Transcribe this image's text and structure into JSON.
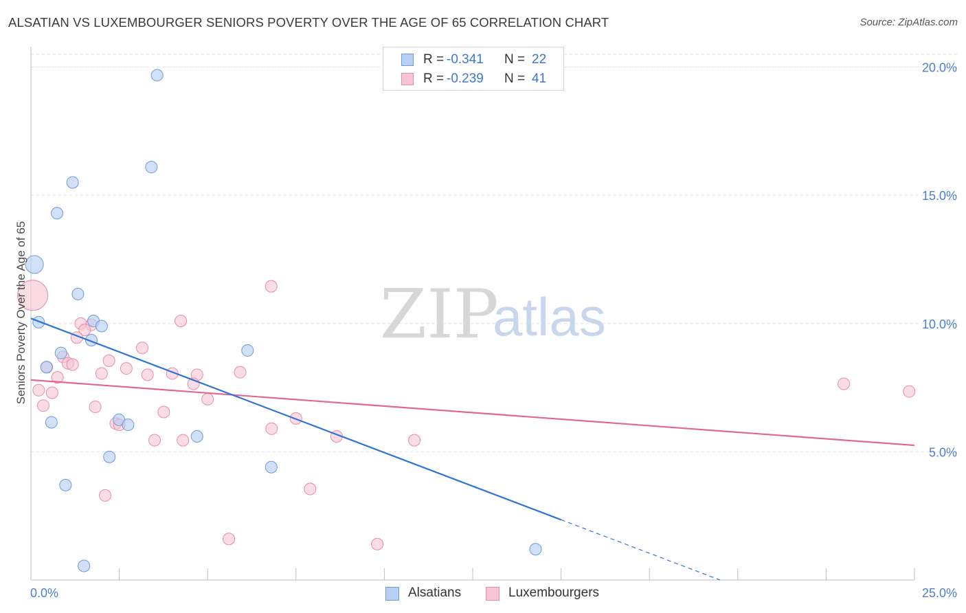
{
  "title": "ALSATIAN VS LUXEMBOURGER SENIORS POVERTY OVER THE AGE OF 65 CORRELATION CHART",
  "source": "Source: ZipAtlas.com",
  "legend": {
    "rows": [
      {
        "r_label": "R =",
        "r_value": "-0.341",
        "n_label": "N =",
        "n_value": "22"
      },
      {
        "r_label": "R =",
        "r_value": "-0.239",
        "n_label": "N =",
        "n_value": "41"
      }
    ]
  },
  "watermark": {
    "zip": "ZIP",
    "atlas": "atlas"
  },
  "colors": {
    "alsatians_fill": "#b7cff3",
    "alsatians_stroke": "#6f9ad8",
    "alsatians_line": "#2f73d6",
    "luxembourgers_fill": "#f7c4d3",
    "luxembourgers_stroke": "#e78ca8",
    "luxembourgers_line": "#e06890",
    "grid": "#e2e2e2",
    "tick_text": "#4a7fcf"
  },
  "chart_data": {
    "type": "scatter",
    "title": "ALSATIAN VS LUXEMBOURGER SENIORS POVERTY OVER THE AGE OF 65 CORRELATION CHART",
    "xlabel": "",
    "ylabel": "Seniors Poverty Over the Age of 65",
    "xlim": [
      0,
      25
    ],
    "ylim": [
      0,
      20.5
    ],
    "x_tick_labels": [
      "0.0%",
      "25.0%"
    ],
    "y_ticks": [
      5,
      10,
      15,
      20
    ],
    "y_tick_labels": [
      "5.0%",
      "10.0%",
      "15.0%",
      "20.0%"
    ],
    "grid": true,
    "legend_position": "top-center",
    "series": [
      {
        "name": "Alsatians",
        "r": -0.341,
        "n": 22,
        "points": [
          {
            "x": 3.57,
            "y": 19.68
          },
          {
            "x": 3.41,
            "y": 16.1
          },
          {
            "x": 1.18,
            "y": 15.5
          },
          {
            "x": 0.74,
            "y": 14.3
          },
          {
            "x": 0.1,
            "y": 12.3,
            "big": true
          },
          {
            "x": 1.33,
            "y": 11.15
          },
          {
            "x": 0.22,
            "y": 10.05
          },
          {
            "x": 1.77,
            "y": 10.1
          },
          {
            "x": 2.0,
            "y": 9.9
          },
          {
            "x": 1.71,
            "y": 9.35
          },
          {
            "x": 0.85,
            "y": 8.85
          },
          {
            "x": 6.13,
            "y": 8.95
          },
          {
            "x": 0.44,
            "y": 8.3
          },
          {
            "x": 0.58,
            "y": 6.15
          },
          {
            "x": 2.49,
            "y": 6.25
          },
          {
            "x": 2.75,
            "y": 6.05
          },
          {
            "x": 4.7,
            "y": 5.6
          },
          {
            "x": 2.22,
            "y": 4.8
          },
          {
            "x": 6.8,
            "y": 4.4
          },
          {
            "x": 0.98,
            "y": 3.7
          },
          {
            "x": 14.28,
            "y": 1.2
          },
          {
            "x": 1.5,
            "y": 0.55
          }
        ],
        "trend": {
          "x0": 0.0,
          "y0": 10.2,
          "x1": 15.0,
          "y1": 2.35,
          "dash_to_x": 19.5,
          "dash_to_y": 0.0
        }
      },
      {
        "name": "Luxembourgers",
        "r": -0.239,
        "n": 41,
        "points": [
          {
            "x": 0.05,
            "y": 11.1,
            "big": true
          },
          {
            "x": 6.8,
            "y": 11.45
          },
          {
            "x": 4.24,
            "y": 10.1
          },
          {
            "x": 1.41,
            "y": 10.0
          },
          {
            "x": 1.71,
            "y": 9.95
          },
          {
            "x": 1.52,
            "y": 9.75
          },
          {
            "x": 1.3,
            "y": 9.45
          },
          {
            "x": 3.15,
            "y": 9.05
          },
          {
            "x": 0.91,
            "y": 8.7
          },
          {
            "x": 2.21,
            "y": 8.55
          },
          {
            "x": 1.05,
            "y": 8.45
          },
          {
            "x": 1.18,
            "y": 8.4
          },
          {
            "x": 0.45,
            "y": 8.3
          },
          {
            "x": 2.7,
            "y": 8.25
          },
          {
            "x": 5.92,
            "y": 8.1
          },
          {
            "x": 2.0,
            "y": 8.05
          },
          {
            "x": 4.0,
            "y": 8.05
          },
          {
            "x": 3.3,
            "y": 8.0
          },
          {
            "x": 4.7,
            "y": 8.0
          },
          {
            "x": 0.75,
            "y": 7.9
          },
          {
            "x": 4.6,
            "y": 7.65
          },
          {
            "x": 23.0,
            "y": 7.65
          },
          {
            "x": 0.22,
            "y": 7.4
          },
          {
            "x": 24.85,
            "y": 7.35
          },
          {
            "x": 0.6,
            "y": 7.3
          },
          {
            "x": 5.0,
            "y": 7.05
          },
          {
            "x": 0.35,
            "y": 6.8
          },
          {
            "x": 1.82,
            "y": 6.75
          },
          {
            "x": 3.76,
            "y": 6.55
          },
          {
            "x": 7.5,
            "y": 6.3
          },
          {
            "x": 2.4,
            "y": 6.1
          },
          {
            "x": 2.5,
            "y": 6.05
          },
          {
            "x": 6.81,
            "y": 5.9
          },
          {
            "x": 8.65,
            "y": 5.6
          },
          {
            "x": 10.85,
            "y": 5.45
          },
          {
            "x": 3.5,
            "y": 5.45
          },
          {
            "x": 4.3,
            "y": 5.45
          },
          {
            "x": 7.9,
            "y": 3.55
          },
          {
            "x": 2.1,
            "y": 3.3
          },
          {
            "x": 5.6,
            "y": 1.6
          },
          {
            "x": 9.8,
            "y": 1.4
          }
        ],
        "trend": {
          "x0": 0.0,
          "y0": 7.8,
          "x1": 25.0,
          "y1": 5.25
        }
      }
    ]
  },
  "bottom_legend": [
    "Alsatians",
    "Luxembourgers"
  ]
}
